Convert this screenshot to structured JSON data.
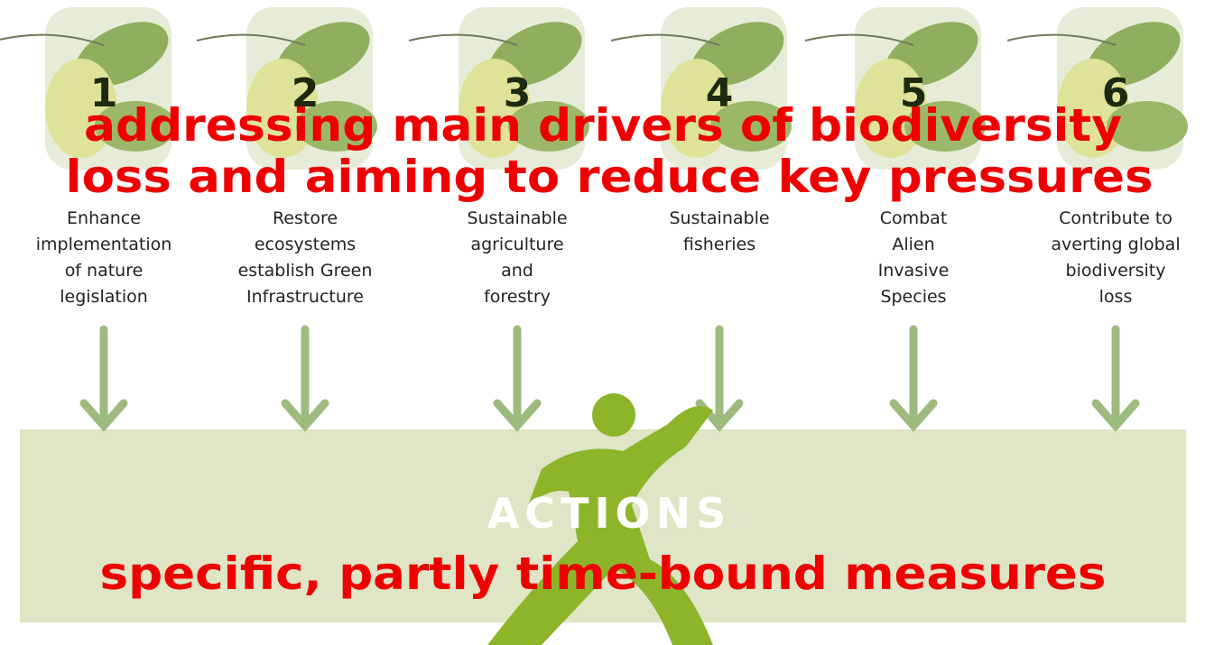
{
  "targets": [
    {
      "number": "1",
      "lines": [
        "Enhance",
        "implementation",
        "of nature",
        "legislation"
      ]
    },
    {
      "number": "2",
      "lines": [
        "Restore",
        "ecosystems",
        "establish Green",
        "Infrastructure"
      ]
    },
    {
      "number": "3",
      "lines": [
        "Sustainable",
        "agriculture",
        "and",
        "forestry"
      ]
    },
    {
      "number": "4",
      "lines": [
        "Sustainable",
        "fisheries"
      ]
    },
    {
      "number": "5",
      "lines": [
        "Combat",
        "Alien",
        "Invasive",
        "Species"
      ]
    },
    {
      "number": "6",
      "lines": [
        "Contribute to",
        "averting global",
        "biodiversity",
        "loss"
      ]
    }
  ],
  "headline": [
    "addressing main drivers of biodiversity",
    "loss and aiming to reduce key pressures"
  ],
  "actions": {
    "label": "ACTIONS",
    "caption": "specific, partly time-bound measures"
  }
}
